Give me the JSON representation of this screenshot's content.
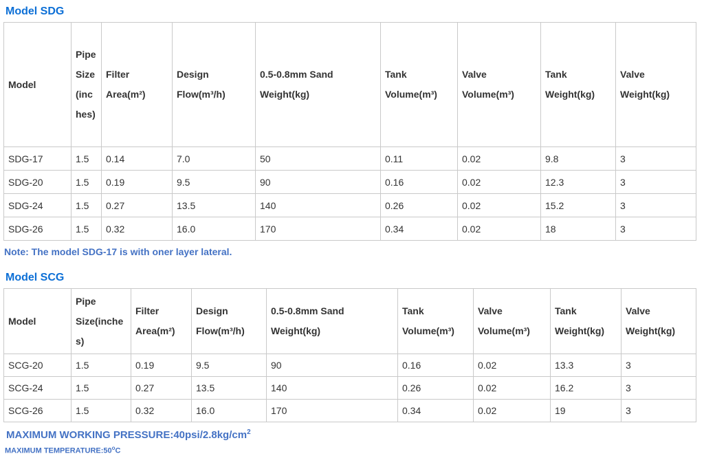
{
  "page": {
    "section1_title": "Model SDG",
    "section2_title": "Model SCG",
    "note": "Note: The model SDG-17 is with oner layer lateral.",
    "footer": {
      "pressure_main": "MAXIMUM WORKING PRESSURE:40psi/2.8kg/cm",
      "pressure_sup": "2",
      "temperature_main": "MAXIMUM TEMPERATURE:50",
      "temperature_sup": "o",
      "temperature_tail": "C"
    },
    "colors": {
      "section_title_blue": "#0c6fd6",
      "note_blue": "#4472c4",
      "table_border_gray": "#c9c9c9",
      "cell_text": "#333333"
    }
  },
  "tables": [
    {
      "name": "Model SDG specifications",
      "headers": [
        "Model",
        "Pipe Size (inches)",
        "Filter Area(m²)",
        "Design Flow(m³/h)",
        "0.5-0.8mm Sand Weight(kg)",
        "Tank Volume(m³)",
        "Valve Volume(m³)",
        "Tank Weight(kg)",
        "Valve Weight(kg)"
      ],
      "rows": [
        [
          "SDG-17",
          "1.5",
          "0.14",
          "7.0",
          "50",
          "0.11",
          "0.02",
          "9.8",
          "3"
        ],
        [
          "SDG-20",
          "1.5",
          "0.19",
          "9.5",
          "90",
          "0.16",
          "0.02",
          "12.3",
          "3"
        ],
        [
          "SDG-24",
          "1.5",
          "0.27",
          "13.5",
          "140",
          "0.26",
          "0.02",
          "15.2",
          "3"
        ],
        [
          "SDG-26",
          "1.5",
          "0.32",
          "16.0",
          "170",
          "0.34",
          "0.02",
          "18",
          "3"
        ]
      ]
    },
    {
      "name": "Model SCG specifications",
      "headers": [
        "Model",
        "Pipe Size(inches)",
        "Filter Area(m²)",
        "Design Flow(m³/h)",
        "0.5-0.8mm Sand Weight(kg)",
        "Tank Volume(m³)",
        "Valve Volume(m³)",
        "Tank Weight(kg)",
        "Valve Weight(kg)"
      ],
      "rows": [
        [
          "SCG-20",
          "1.5",
          "0.19",
          "9.5",
          "90",
          "0.16",
          "0.02",
          "13.3",
          "3"
        ],
        [
          "SCG-24",
          "1.5",
          "0.27",
          "13.5",
          "140",
          "0.26",
          "0.02",
          "16.2",
          "3"
        ],
        [
          "SCG-26",
          "1.5",
          "0.32",
          "16.0",
          "170",
          "0.34",
          "0.02",
          "19",
          "3"
        ]
      ]
    }
  ]
}
